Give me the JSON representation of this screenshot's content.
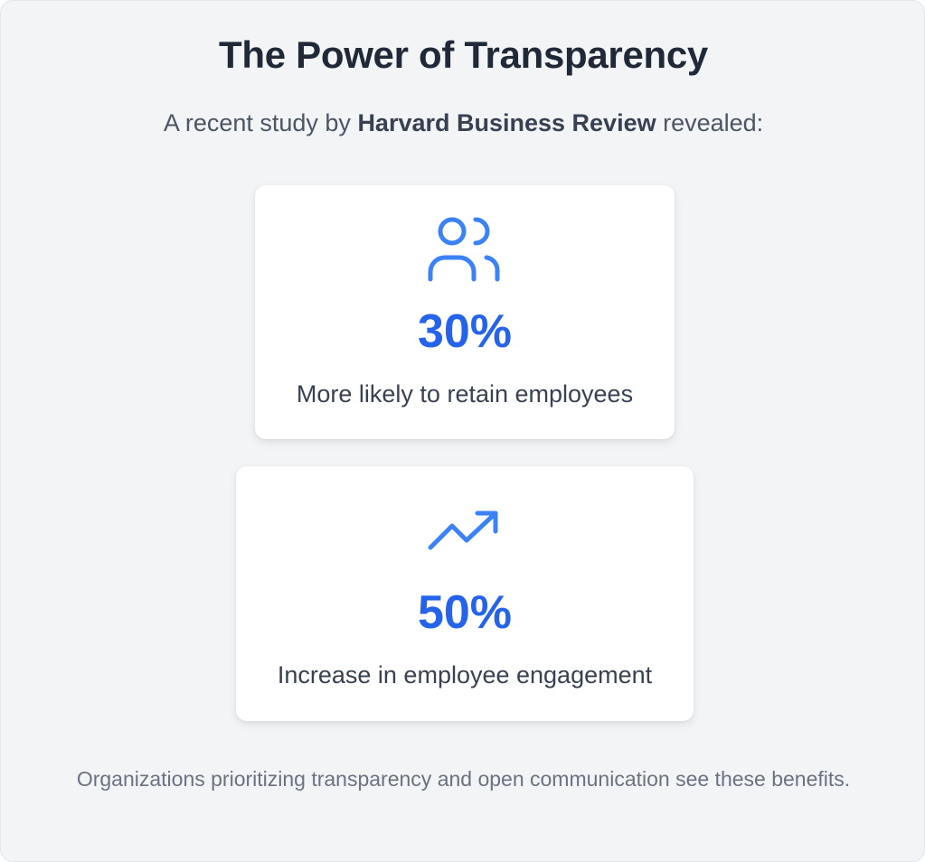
{
  "header": {
    "title": "The Power of Transparency",
    "subtitle_prefix": "A recent study by ",
    "subtitle_source": "Harvard Business Review",
    "subtitle_suffix": " revealed:"
  },
  "stats": [
    {
      "icon": "users-icon",
      "value": "30%",
      "description": "More likely to retain employees"
    },
    {
      "icon": "trending-up-icon",
      "value": "50%",
      "description": "Increase in employee engagement"
    }
  ],
  "footer": {
    "text": "Organizations prioritizing transparency and open communication see these benefits."
  },
  "colors": {
    "accent": "#2563eb",
    "icon": "#3b82f6",
    "background": "#f2f4f6",
    "title": "#1f2937"
  }
}
